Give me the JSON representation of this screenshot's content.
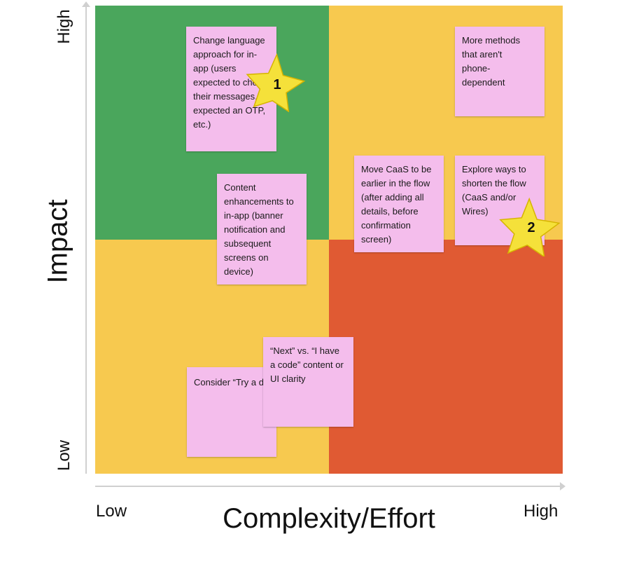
{
  "y_axis": {
    "title": "Impact",
    "high_label": "High",
    "low_label": "Low"
  },
  "x_axis": {
    "title": "Complexity/Effort",
    "low_label": "Low",
    "high_label": "High"
  },
  "quadrant_colors": {
    "high_impact_low_effort": "#4aa65c",
    "high_impact_high_effort": "#f7c94f",
    "low_impact_low_effort": "#f7c94f",
    "low_impact_high_effort": "#e05a33"
  },
  "notes": [
    {
      "text": "Change language approach for in-app (users expected to check their messages, expected an OTP, etc.)"
    },
    {
      "text": "More methods that aren't phone-dependent"
    },
    {
      "text": "Content enhancements to in-app (banner notification and subsequent screens on device)"
    },
    {
      "text": "Move CaaS to be earlier in the flow (after adding all details, before confirmation screen)"
    },
    {
      "text": "Explore ways to shorten the flow (CaaS and/or Wires)"
    },
    {
      "text": "Consider “Try a different method” content change"
    },
    {
      "text": "“Next” vs. “I have a code” content or UI clarity"
    }
  ],
  "stars": [
    {
      "label": "1",
      "color": "#f5e13a"
    },
    {
      "label": "2",
      "color": "#f5e13a"
    }
  ]
}
